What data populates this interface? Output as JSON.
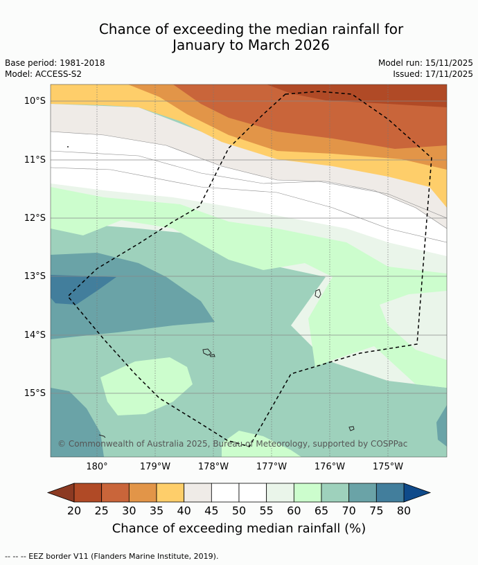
{
  "title": {
    "line1": "Chance of exceeding the median rainfall for",
    "line2": "January to March 2026"
  },
  "meta": {
    "base_period": "Base period: 1981-2018",
    "model": "Model: ACCESS-S2",
    "model_run": "Model run: 15/11/2025",
    "issued": "Issued: 17/11/2025"
  },
  "map": {
    "lat_labels": [
      "10°S",
      "11°S",
      "12°S",
      "13°S",
      "14°S",
      "15°S"
    ],
    "lon_labels": [
      "180°",
      "179°W",
      "178°W",
      "177°W",
      "176°W",
      "175°W"
    ],
    "copyright": "© Commonwealth of Australia 2025, Bureau of Meteorology, supported by COSPPac",
    "eez_legend": "-- -- -- EEZ border V11 (Flanders Marine Institute, 2019)."
  },
  "colorbar": {
    "label": "Chance of exceeding median rainfall (%)",
    "ticks": [
      "20",
      "25",
      "30",
      "35",
      "40",
      "45",
      "50",
      "55",
      "60",
      "65",
      "70",
      "75",
      "80"
    ],
    "colors": [
      "#b04a26",
      "#c9653a",
      "#e29548",
      "#fece6a",
      "#efebe7",
      "#ffffff",
      "#ffffff",
      "#eaf5ea",
      "#ccfdcd",
      "#9ed1bc",
      "#6aa3a7",
      "#427e9c"
    ],
    "under_color": "#8c3a22",
    "over_color": "#0f4a8a"
  }
}
